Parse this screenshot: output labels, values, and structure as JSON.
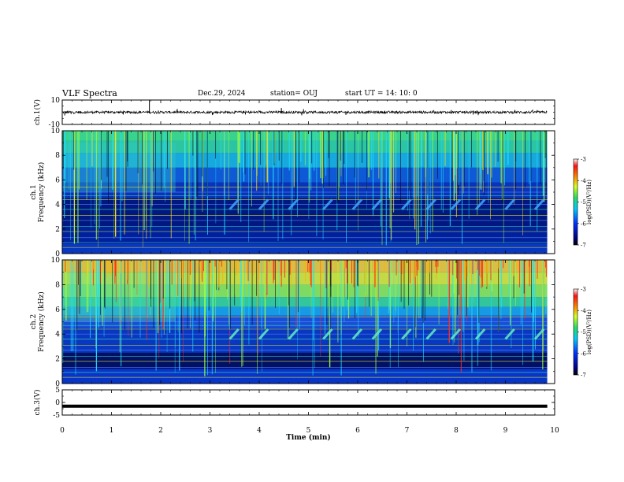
{
  "header": {
    "title": "VLF Spectra",
    "date": "Dec.29, 2024",
    "station": "station= OUJ",
    "start": "start  UT  =   14: 10: 0"
  },
  "chart_data": [
    {
      "type": "line",
      "panel": "ch1-waveform",
      "ylabel": "ch.1(V)",
      "ylim": [
        -10,
        10
      ],
      "yticks": [
        "10",
        "-10"
      ],
      "x_range_min": [
        0,
        9.85
      ],
      "series": [
        {
          "values_note": "",
          "baseline": 0
        }
      ],
      "spikes": [
        {
          "x": 0.05,
          "y": -2.6
        },
        {
          "x": 0.18,
          "y": -1.5
        },
        {
          "x": 1.77,
          "y": 10
        },
        {
          "x": 4.45,
          "y": 3.5
        },
        {
          "x": 4.9,
          "y": 2.5
        },
        {
          "x": 7.9,
          "y": 1.8
        }
      ]
    },
    {
      "type": "heatmap",
      "panel": "ch1-spectrogram",
      "ylabel": "ch.1\nFrequency (kHz)",
      "ylim": [
        0,
        10
      ],
      "yticks": [
        0,
        2,
        4,
        6,
        8,
        10
      ],
      "x_range_min": [
        0,
        9.85
      ],
      "colorbar": {
        "label": "log(PSD)(V²/Hz)",
        "range": [
          -7,
          -3
        ],
        "ticks": [
          "-3",
          "-4",
          "-5",
          "-6",
          "-7"
        ]
      }
    },
    {
      "type": "heatmap",
      "panel": "ch2-spectrogram",
      "ylabel": "ch.2\nFrequency (kHz)",
      "ylim": [
        0,
        10
      ],
      "yticks": [
        0,
        2,
        4,
        6,
        8,
        10
      ],
      "x_range_min": [
        0,
        9.85
      ],
      "colorbar": {
        "label": "log(PSD)(V²/Hz)",
        "range": [
          -7,
          -3
        ],
        "ticks": [
          "-3",
          "-4",
          "-5",
          "-6",
          "-7"
        ]
      }
    },
    {
      "type": "line",
      "panel": "ch3-waveform",
      "ylabel": "ch.3(V)",
      "ylim": [
        -5,
        5
      ],
      "yticks": [
        "5",
        "0",
        "-5"
      ],
      "series": [
        {
          "name": "",
          "constant_y": -1.5
        }
      ]
    }
  ],
  "xaxis": {
    "label": "Time (min)",
    "ticks": [
      "0",
      "1",
      "2",
      "3",
      "4",
      "5",
      "6",
      "7",
      "8",
      "9",
      "10"
    ],
    "xlim": [
      0,
      10
    ]
  }
}
